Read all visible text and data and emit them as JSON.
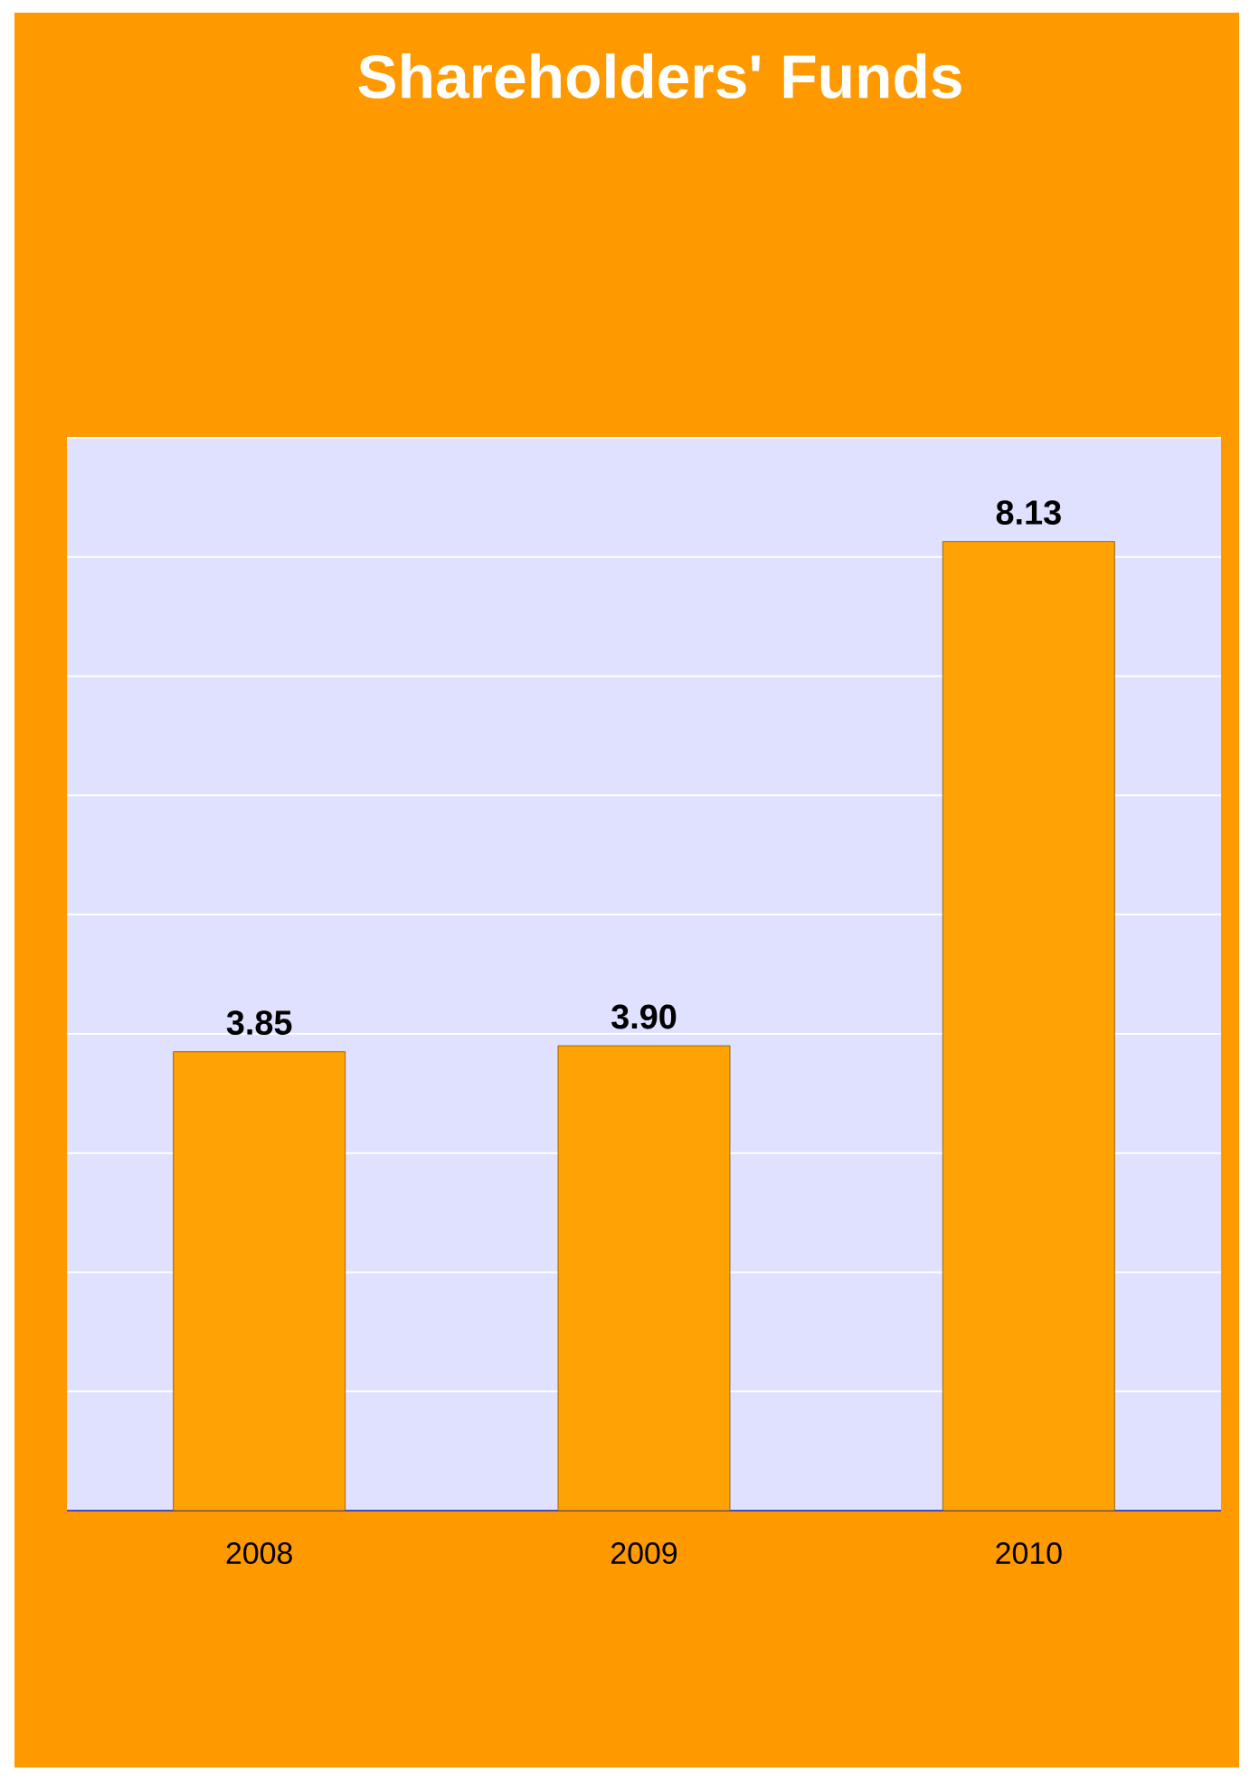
{
  "chart_data": {
    "type": "bar",
    "title": "Shareholders' Funds",
    "categories": [
      "2008",
      "2009",
      "2010"
    ],
    "values": [
      3.85,
      3.9,
      8.13
    ],
    "color": "#ffa305",
    "value_labels": [
      "3.85",
      "3.90",
      "8.13"
    ],
    "ylim": [
      0,
      9
    ],
    "yticks": [
      {
        "value": 0,
        "label": null
      },
      {
        "value": 1,
        "label": null
      },
      {
        "value": 2,
        "label": null
      },
      {
        "value": 3,
        "label": null
      },
      {
        "value": 4,
        "label": null
      },
      {
        "value": 5,
        "label": null
      },
      {
        "value": 6,
        "label": null
      },
      {
        "value": 7,
        "label": null
      },
      {
        "value": 8,
        "label": null
      },
      {
        "value": 9,
        "label": null
      }
    ],
    "grid": "y",
    "tick_labels": "x"
  }
}
